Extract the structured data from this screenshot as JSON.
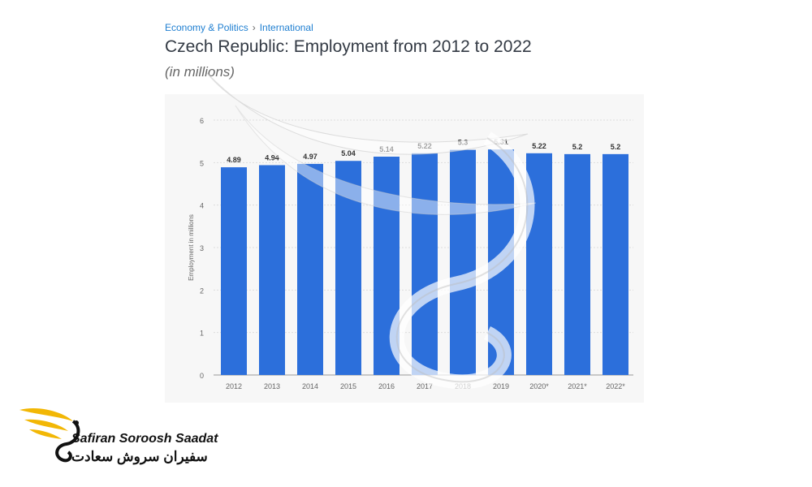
{
  "breadcrumb": {
    "items": [
      "Economy & Politics",
      "International"
    ],
    "separator": "›"
  },
  "header": {
    "title": "Czech Republic: Employment from 2012 to 2022",
    "subtitle": "(in millions)"
  },
  "chart_data": {
    "type": "bar",
    "categories": [
      "2012",
      "2013",
      "2014",
      "2015",
      "2016",
      "2017",
      "2018",
      "2019",
      "2020*",
      "2021*",
      "2022*"
    ],
    "values": [
      4.89,
      4.94,
      4.97,
      5.04,
      5.14,
      5.22,
      5.3,
      5.31,
      5.22,
      5.2,
      5.2
    ],
    "data_labels": [
      "4.89",
      "4.94",
      "4.97",
      "5.04",
      "5.14",
      "5.22",
      "5.3",
      "5.31",
      "5.22",
      "5.2",
      "5.2"
    ],
    "yticks": [
      "0",
      "1",
      "2",
      "3",
      "4",
      "5",
      "6"
    ],
    "ylim": [
      0,
      6
    ],
    "ylabel": "Employment in millions",
    "xlabel": "",
    "grid": true,
    "bar_color": "#2c6fdb"
  },
  "logo": {
    "name_en": "Safiran Soroosh Saadat",
    "name_fa": "سفیران سروش سعادت",
    "icon": "bird-wing-icon",
    "accent": "#f2b705"
  }
}
